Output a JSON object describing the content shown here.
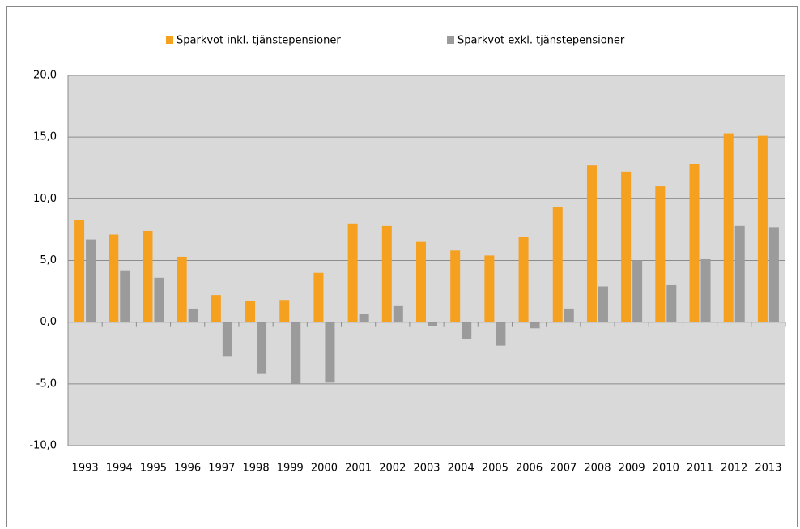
{
  "chart_data": {
    "type": "bar",
    "categories": [
      "1993",
      "1994",
      "1995",
      "1996",
      "1997",
      "1998",
      "1999",
      "2000",
      "2001",
      "2002",
      "2003",
      "2004",
      "2005",
      "2006",
      "2007",
      "2008",
      "2009",
      "2010",
      "2011",
      "2012",
      "2013"
    ],
    "series": [
      {
        "name": "Sparkvot inkl. tjänstepensioner",
        "color": "#f5a01e",
        "values": [
          8.3,
          7.1,
          7.4,
          5.3,
          2.2,
          1.7,
          1.8,
          4.0,
          8.0,
          7.8,
          6.5,
          5.8,
          5.4,
          6.9,
          9.3,
          12.7,
          12.2,
          11.0,
          12.8,
          15.3,
          15.1
        ]
      },
      {
        "name": "Sparkvot exkl. tjänstepensioner",
        "color": "#9b9b9b",
        "values": [
          6.7,
          4.2,
          3.6,
          1.1,
          -2.8,
          -4.2,
          -5.0,
          -4.9,
          0.7,
          1.3,
          -0.3,
          -1.4,
          -1.9,
          -0.5,
          1.1,
          2.9,
          5.0,
          3.0,
          5.1,
          7.8,
          7.7
        ]
      }
    ],
    "ylim": [
      -10,
      20
    ],
    "yticks": [
      {
        "value": -10,
        "label": "-10,0"
      },
      {
        "value": -5,
        "label": "-5,0"
      },
      {
        "value": 0,
        "label": "0,0"
      },
      {
        "value": 5,
        "label": "5,0"
      },
      {
        "value": 10,
        "label": "10,0"
      },
      {
        "value": 15,
        "label": "15,0"
      },
      {
        "value": 20,
        "label": "20,0"
      }
    ],
    "grid": true,
    "legend": "top"
  }
}
